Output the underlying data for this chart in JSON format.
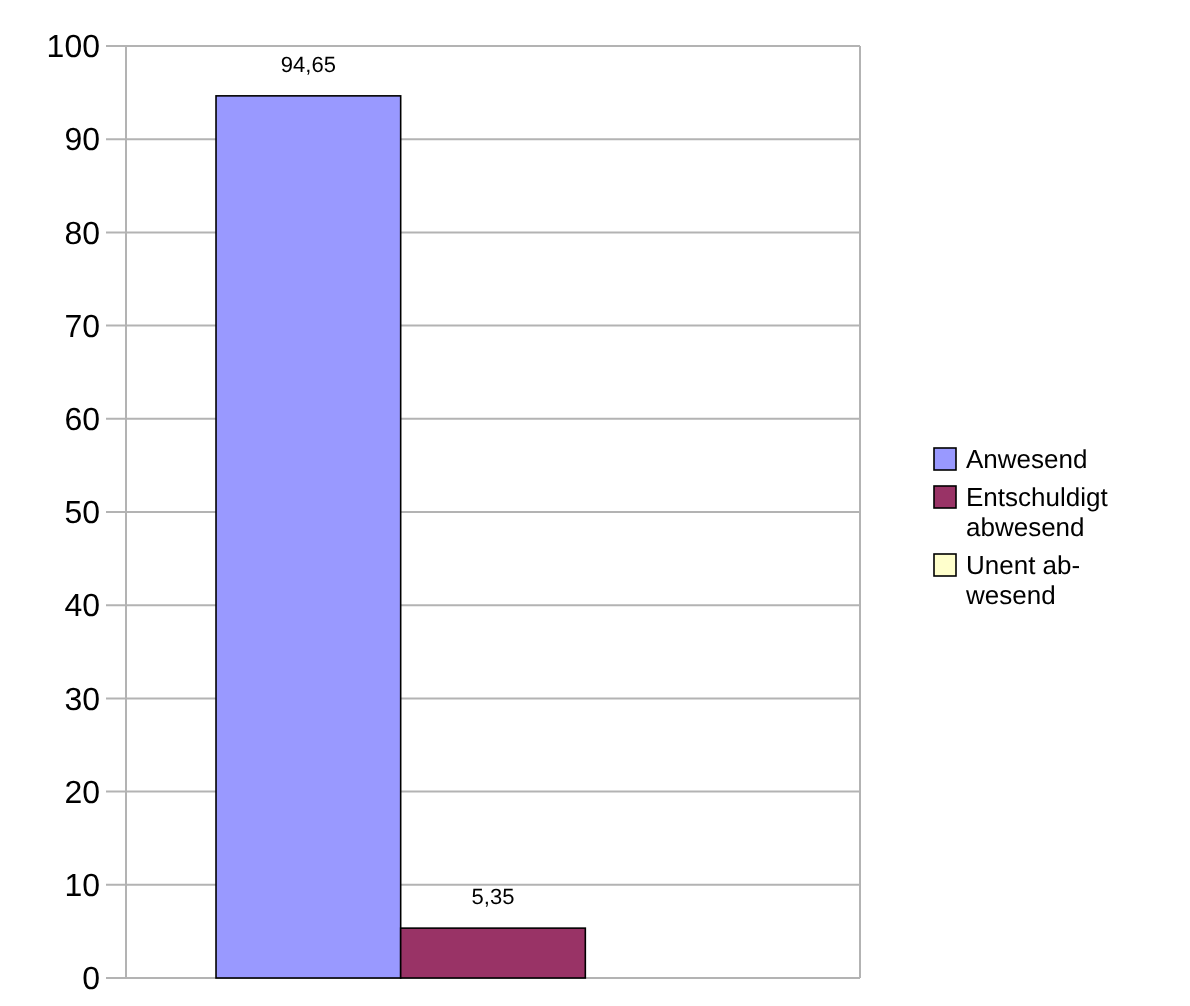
{
  "chart_data": {
    "type": "bar",
    "categories": [
      null
    ],
    "series": [
      {
        "name": "Anwesend",
        "color": "#9999ff",
        "values": [
          94.65
        ],
        "value_labels": [
          "94,65"
        ]
      },
      {
        "name": "Entschuldigt abwesend",
        "color": "#993366",
        "values": [
          5.35
        ],
        "value_labels": [
          "5,35"
        ]
      },
      {
        "name": "Unent ab-wesend",
        "color": "#ffffcc",
        "values": [
          0
        ],
        "value_labels": [
          null
        ]
      }
    ],
    "ylim": [
      0,
      100
    ],
    "yticks": [
      0,
      10,
      20,
      30,
      40,
      50,
      60,
      70,
      80,
      90,
      100
    ],
    "grid": "y",
    "legend": "right"
  }
}
